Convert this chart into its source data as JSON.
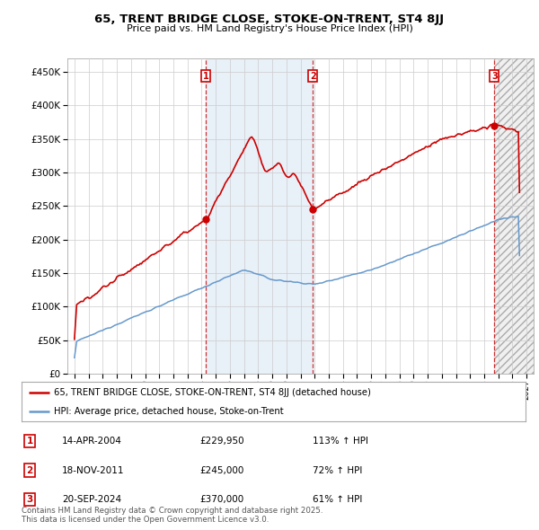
{
  "title": "65, TRENT BRIDGE CLOSE, STOKE-ON-TRENT, ST4 8JJ",
  "subtitle": "Price paid vs. HM Land Registry's House Price Index (HPI)",
  "background_color": "#ffffff",
  "grid_color": "#cccccc",
  "sale_dates": [
    2004.28,
    2011.88,
    2024.72
  ],
  "sale_prices": [
    229950,
    245000,
    370000
  ],
  "sale_labels": [
    "1",
    "2",
    "3"
  ],
  "sale_info": [
    {
      "label": "1",
      "date": "14-APR-2004",
      "price": "£229,950",
      "hpi": "113% ↑ HPI"
    },
    {
      "label": "2",
      "date": "18-NOV-2011",
      "price": "£245,000",
      "hpi": "72% ↑ HPI"
    },
    {
      "label": "3",
      "date": "20-SEP-2024",
      "price": "£370,000",
      "hpi": "61% ↑ HPI"
    }
  ],
  "legend_line1": "65, TRENT BRIDGE CLOSE, STOKE-ON-TRENT, ST4 8JJ (detached house)",
  "legend_line2": "HPI: Average price, detached house, Stoke-on-Trent",
  "footnote": "Contains HM Land Registry data © Crown copyright and database right 2025.\nThis data is licensed under the Open Government Licence v3.0.",
  "red_line_color": "#cc0000",
  "blue_line_color": "#6699cc",
  "ylim": [
    0,
    470000
  ],
  "yticks": [
    0,
    50000,
    100000,
    150000,
    200000,
    250000,
    300000,
    350000,
    400000,
    450000
  ],
  "xlim": [
    1994.5,
    2027.5
  ],
  "xticks": [
    1995,
    1996,
    1997,
    1998,
    1999,
    2000,
    2001,
    2002,
    2003,
    2004,
    2005,
    2006,
    2007,
    2008,
    2009,
    2010,
    2011,
    2012,
    2013,
    2014,
    2015,
    2016,
    2017,
    2018,
    2019,
    2020,
    2021,
    2022,
    2023,
    2024,
    2025,
    2026,
    2027
  ]
}
